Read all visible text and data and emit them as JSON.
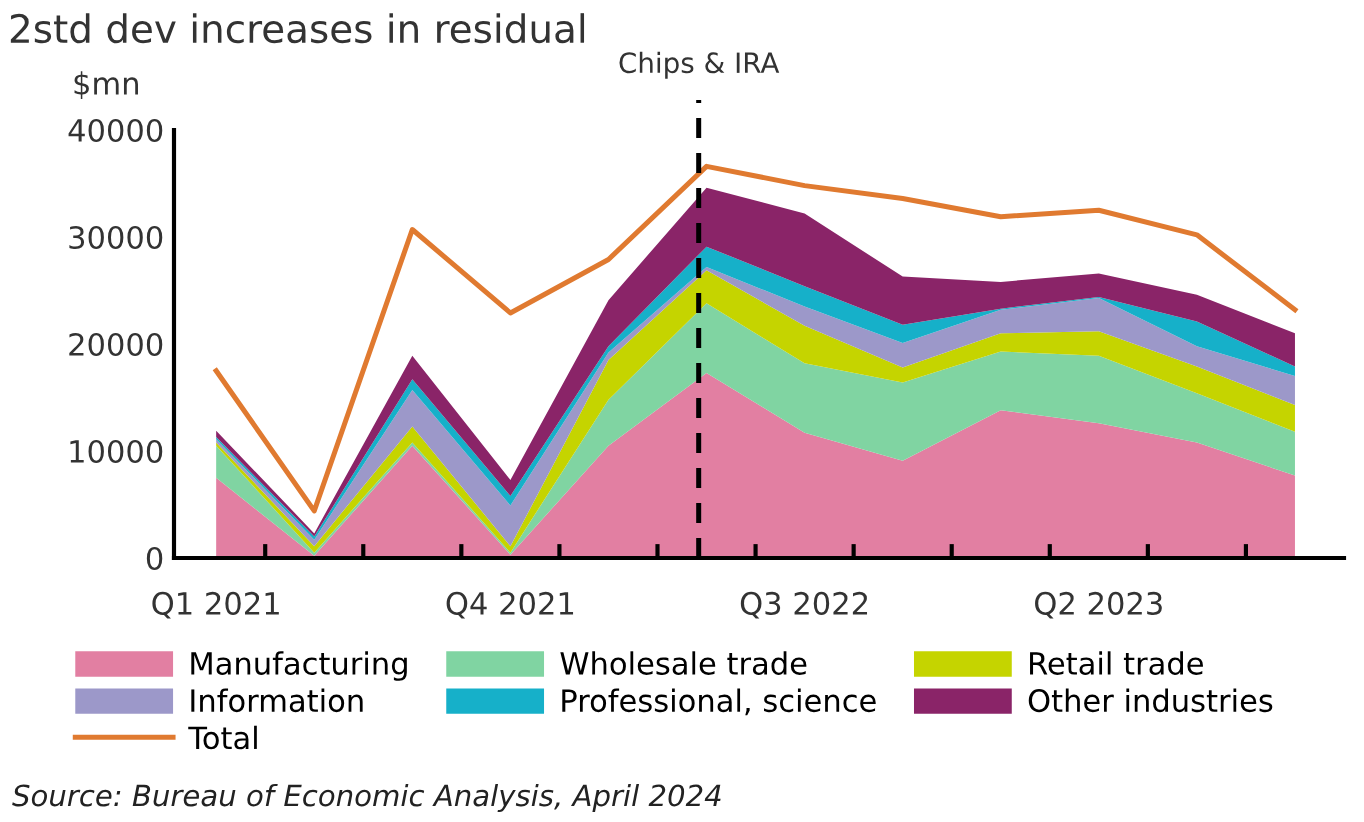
{
  "chart_data": {
    "type": "area",
    "stacked": true,
    "title": "2std dev increases in residual",
    "ylabel": "$mn",
    "categories": [
      "Q1 2021",
      null,
      null,
      "Q4 2021",
      null,
      null,
      "Q3 2022",
      null,
      null,
      "Q2 2023",
      null,
      null
    ],
    "ylim": [
      0,
      40000
    ],
    "yticks": [
      0,
      10000,
      20000,
      30000,
      40000
    ],
    "legend": "bottom",
    "series": [
      {
        "name": "Manufacturing",
        "color": "#e27fa2",
        "values": [
          7500,
          200,
          10500,
          300,
          10500,
          17300,
          11700,
          9100,
          13800,
          12600,
          10800,
          7700
        ]
      },
      {
        "name": "Wholesale trade",
        "color": "#80d4a2",
        "values": [
          3000,
          300,
          300,
          200,
          4300,
          6500,
          6500,
          7300,
          5500,
          6300,
          4600,
          4100
        ]
      },
      {
        "name": "Retail trade",
        "color": "#c5d400",
        "values": [
          300,
          600,
          1500,
          600,
          3700,
          3100,
          3500,
          1400,
          1700,
          2300,
          2500,
          2500
        ]
      },
      {
        "name": "Information",
        "color": "#9c98c9",
        "values": [
          300,
          600,
          3400,
          3800,
          700,
          300,
          1800,
          2300,
          2200,
          3100,
          1900,
          2700
        ]
      },
      {
        "name": "Professional, science",
        "color": "#16b0c9",
        "values": [
          200,
          300,
          1000,
          900,
          600,
          1900,
          1900,
          1700,
          100,
          100,
          2300,
          900
        ]
      },
      {
        "name": "Other industries",
        "color": "#8a2468",
        "values": [
          600,
          300,
          2200,
          1500,
          4300,
          5500,
          6800,
          4500,
          2500,
          2200,
          2500,
          3100
        ]
      },
      {
        "name": "Total",
        "type": "line",
        "color": "#e07a30",
        "values": [
          17500,
          4400,
          30700,
          22900,
          27900,
          36600,
          34800,
          33600,
          31900,
          32500,
          30200,
          23200
        ]
      }
    ],
    "annotations": [
      "Chips & IRA",
      "Source: Bureau of Economic Analysis, April 2024"
    ]
  }
}
